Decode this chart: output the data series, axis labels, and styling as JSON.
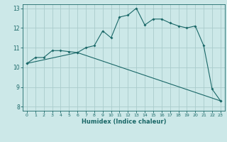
{
  "xlabel": "Humidex (Indice chaleur)",
  "bg_color": "#cce8e8",
  "grid_color": "#aacccc",
  "line_color": "#1a6868",
  "xlim": [
    -0.5,
    23.5
  ],
  "ylim": [
    7.8,
    13.2
  ],
  "yticks": [
    8,
    9,
    10,
    11,
    12,
    13
  ],
  "xticks": [
    0,
    1,
    2,
    3,
    4,
    5,
    6,
    7,
    8,
    9,
    10,
    11,
    12,
    13,
    14,
    15,
    16,
    17,
    18,
    19,
    20,
    21,
    22,
    23
  ],
  "line1_x": [
    0,
    1,
    2,
    3,
    4,
    5,
    6,
    7,
    8,
    9,
    10,
    11,
    12,
    13,
    14,
    15,
    16,
    17,
    18,
    19,
    20,
    21,
    22,
    23
  ],
  "line1_y": [
    10.2,
    10.5,
    10.5,
    10.85,
    10.85,
    10.8,
    10.75,
    11.0,
    11.1,
    11.85,
    11.5,
    12.55,
    12.65,
    13.0,
    12.15,
    12.45,
    12.45,
    12.25,
    12.1,
    12.0,
    12.1,
    11.1,
    8.9,
    8.3
  ],
  "line2_x": [
    0,
    6,
    23
  ],
  "line2_y": [
    10.2,
    10.75,
    8.3
  ]
}
